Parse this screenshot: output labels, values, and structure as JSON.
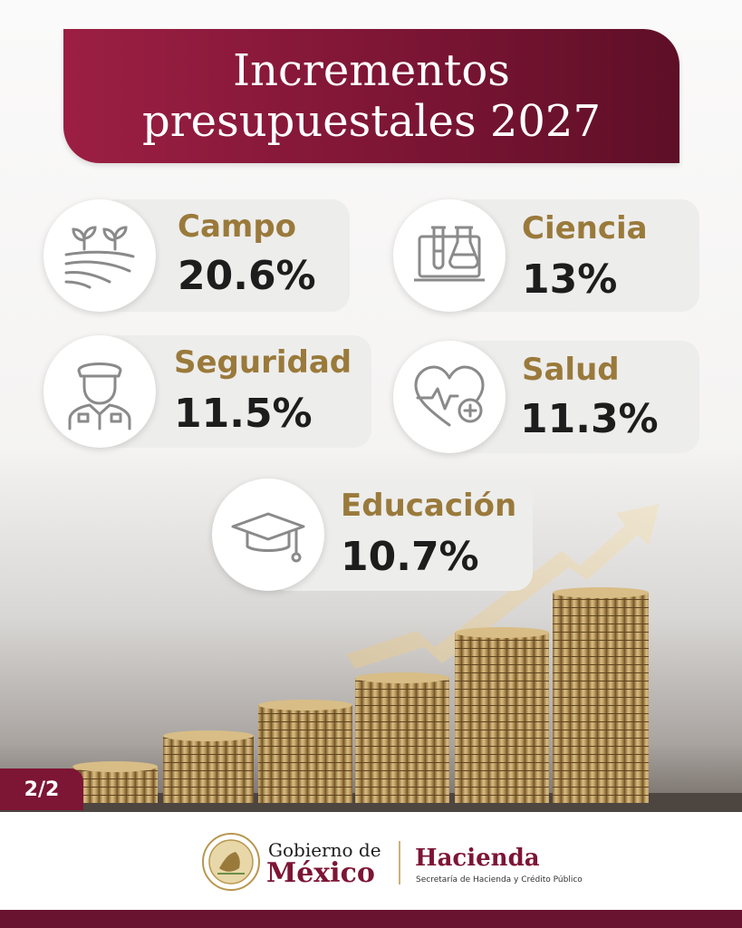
{
  "title": "Incrementos presupuestales 2027",
  "items": [
    {
      "label": "Campo",
      "value": "20.6%",
      "icon": "farm-field-icon"
    },
    {
      "label": "Ciencia",
      "value": "13%",
      "icon": "laboratory-icon"
    },
    {
      "label": "Seguridad",
      "value": "11.5%",
      "icon": "police-officer-icon"
    },
    {
      "label": "Salud",
      "value": "11.3%",
      "icon": "heart-health-icon"
    },
    {
      "label": "Educación",
      "value": "10.7%",
      "icon": "graduation-cap-icon"
    }
  ],
  "page_indicator": "2/2",
  "footer": {
    "gobierno_line1": "Gobierno de",
    "gobierno_line2": "México",
    "hacienda": "Hacienda",
    "hacienda_sub": "Secretaría de Hacienda y Crédito Público"
  },
  "colors": {
    "brand": "#7d1535",
    "gold": "#9a7a3b",
    "text": "#1d1d1d",
    "card": "#ededec"
  }
}
